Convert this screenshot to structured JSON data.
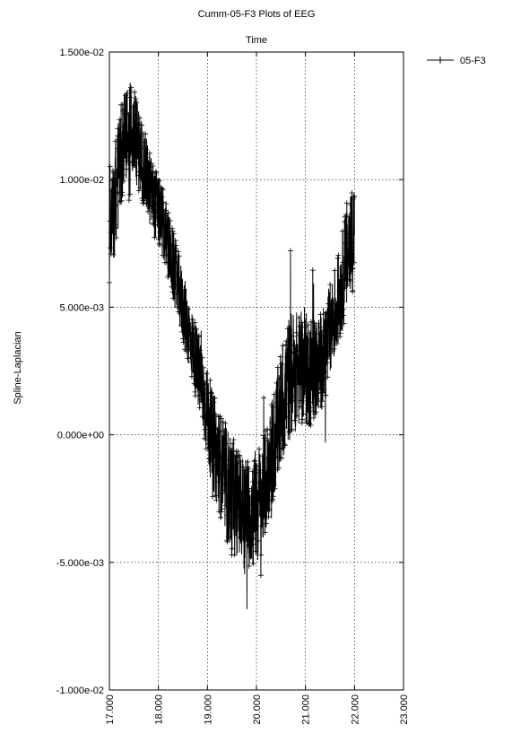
{
  "chart_data": {
    "type": "line",
    "title": "Cumm-05-F3 Plots of EEG",
    "xlabel": "Time",
    "ylabel": "Spline-Laplacian",
    "xlim": [
      17.0,
      23.0
    ],
    "ylim": [
      -0.01,
      0.015
    ],
    "x_ticks": [
      "17.000",
      "18.000",
      "19.000",
      "20.000",
      "21.000",
      "22.000",
      "23.000"
    ],
    "y_ticks": [
      "-1.000e-02",
      "-5.000e-03",
      "0.000e+00",
      "5.000e-03",
      "1.000e-02",
      "1.500e-02"
    ],
    "grid": true,
    "legend_position": "top-right outside",
    "series": [
      {
        "name": "05-F3",
        "color": "#000000",
        "marker": "plus",
        "x": [
          17.0,
          17.1,
          17.2,
          17.3,
          17.4,
          17.5,
          17.6,
          17.7,
          17.8,
          17.9,
          18.0,
          18.1,
          18.2,
          18.3,
          18.4,
          18.5,
          18.6,
          18.7,
          18.8,
          18.9,
          19.0,
          19.1,
          19.2,
          19.3,
          19.4,
          19.5,
          19.6,
          19.7,
          19.8,
          19.9,
          20.0,
          20.1,
          20.2,
          20.3,
          20.4,
          20.5,
          20.6,
          20.7,
          20.8,
          20.9,
          21.0,
          21.1,
          21.2,
          21.3,
          21.4,
          21.5,
          21.6,
          21.7,
          21.8,
          21.9,
          22.0
        ],
        "y": [
          0.0075,
          0.009,
          0.0105,
          0.0115,
          0.012,
          0.0118,
          0.0112,
          0.0105,
          0.0098,
          0.0092,
          0.0088,
          0.0082,
          0.0074,
          0.0066,
          0.0058,
          0.005,
          0.0042,
          0.0034,
          0.0026,
          0.0018,
          0.0008,
          -0.0002,
          -0.0008,
          -0.0014,
          -0.002,
          -0.0024,
          -0.0026,
          -0.0028,
          -0.003,
          -0.003,
          -0.0028,
          -0.0025,
          -0.0018,
          -0.0008,
          0.0,
          0.001,
          0.0018,
          0.0024,
          0.0025,
          0.0026,
          0.0026,
          0.0025,
          0.0026,
          0.0028,
          0.0032,
          0.004,
          0.0048,
          0.0055,
          0.0065,
          0.0075,
          0.008
        ],
        "band": [
          0.0022,
          0.003,
          0.003,
          0.0028,
          0.0028,
          0.0026,
          0.0024,
          0.0022,
          0.0022,
          0.002,
          0.002,
          0.002,
          0.002,
          0.002,
          0.002,
          0.002,
          0.002,
          0.002,
          0.0022,
          0.0024,
          0.0026,
          0.0028,
          0.0028,
          0.003,
          0.0034,
          0.0034,
          0.003,
          0.003,
          0.0032,
          0.0032,
          0.0034,
          0.0032,
          0.003,
          0.003,
          0.0032,
          0.0034,
          0.0036,
          0.0036,
          0.0034,
          0.0032,
          0.0032,
          0.0032,
          0.003,
          0.0028,
          0.0028,
          0.0028,
          0.0026,
          0.0026,
          0.003,
          0.0034,
          0.003
        ]
      }
    ]
  }
}
